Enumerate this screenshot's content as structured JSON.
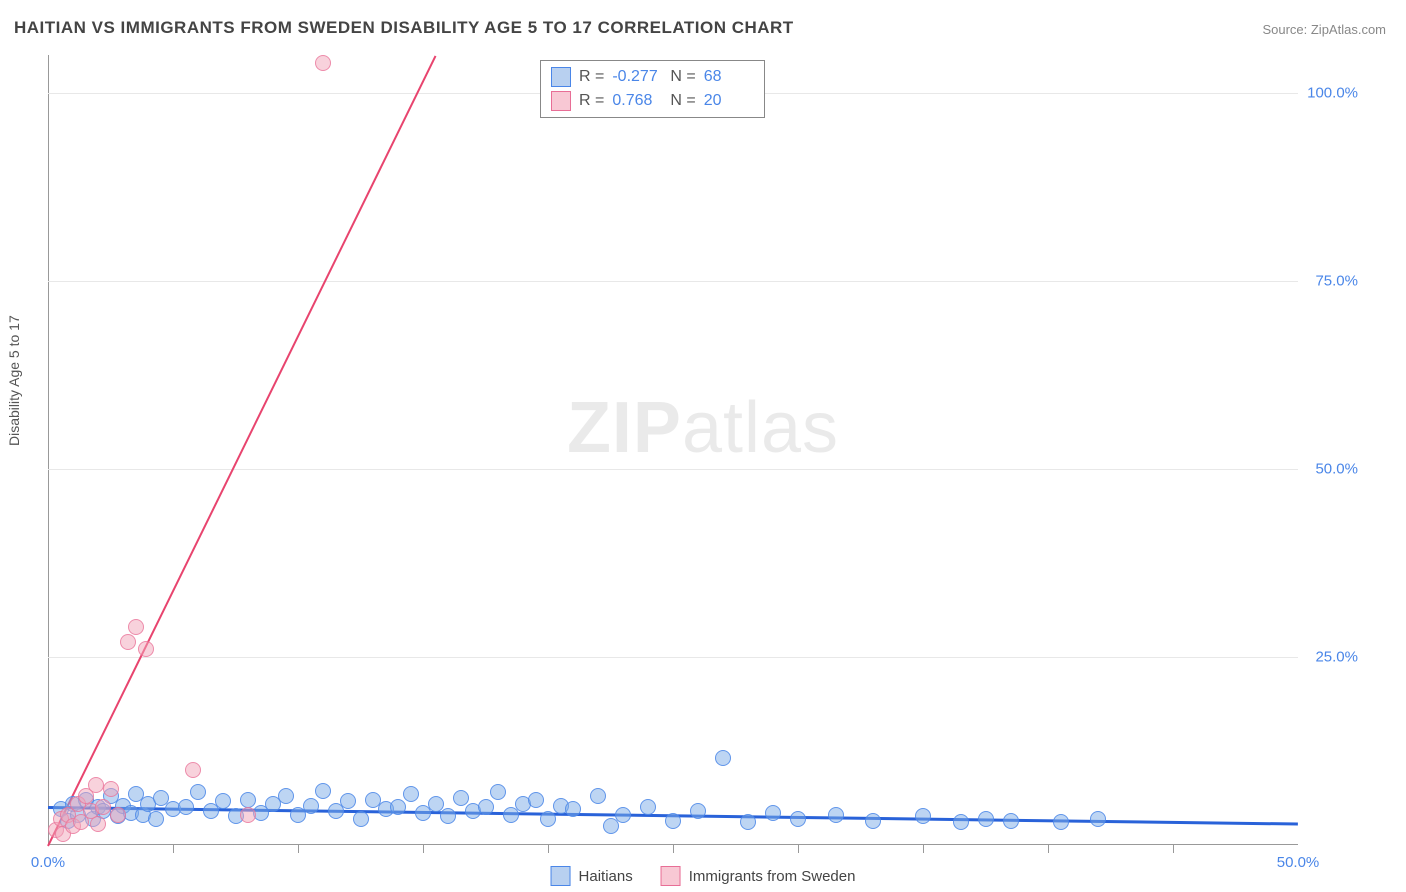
{
  "title": "HAITIAN VS IMMIGRANTS FROM SWEDEN DISABILITY AGE 5 TO 17 CORRELATION CHART",
  "source": "Source: ZipAtlas.com",
  "ylabel": "Disability Age 5 to 17",
  "watermark_zip": "ZIP",
  "watermark_atlas": "atlas",
  "chart": {
    "type": "scatter",
    "background_color": "#ffffff",
    "grid_color": "#e8e8e8",
    "axis_color": "#999999",
    "tick_label_color": "#4a86e8",
    "xlim": [
      0,
      50
    ],
    "ylim": [
      0,
      105
    ],
    "xtick_labels": [
      {
        "v": 0,
        "t": "0.0%"
      },
      {
        "v": 50,
        "t": "50.0%"
      }
    ],
    "xtick_marks": [
      5,
      10,
      15,
      20,
      25,
      30,
      35,
      40,
      45
    ],
    "ytick_labels": [
      {
        "v": 25,
        "t": "25.0%"
      },
      {
        "v": 50,
        "t": "50.0%"
      },
      {
        "v": 75,
        "t": "75.0%"
      },
      {
        "v": 100,
        "t": "100.0%"
      }
    ],
    "marker_radius": 8,
    "series": [
      {
        "name": "Haitians",
        "color_fill": "rgba(123,171,232,0.5)",
        "color_stroke": "rgba(74,134,232,0.8)",
        "swatch_fill": "#b8d0f0",
        "swatch_stroke": "#4a86e8",
        "R": "-0.277",
        "N": "68",
        "trend": {
          "x1": 0,
          "y1": 5.2,
          "x2": 50,
          "y2": 3.0,
          "color": "#2962d9",
          "width": 3
        },
        "points": [
          [
            0.5,
            4.8
          ],
          [
            0.8,
            3.2
          ],
          [
            1.0,
            5.5
          ],
          [
            1.2,
            4.0
          ],
          [
            1.5,
            6.0
          ],
          [
            1.8,
            3.5
          ],
          [
            2.0,
            5.0
          ],
          [
            2.2,
            4.5
          ],
          [
            2.5,
            6.5
          ],
          [
            2.8,
            3.8
          ],
          [
            3.0,
            5.2
          ],
          [
            3.3,
            4.2
          ],
          [
            3.5,
            6.8
          ],
          [
            3.8,
            4.0
          ],
          [
            4.0,
            5.5
          ],
          [
            4.3,
            3.5
          ],
          [
            4.5,
            6.2
          ],
          [
            5.0,
            4.8
          ],
          [
            5.5,
            5.0
          ],
          [
            6.0,
            7.0
          ],
          [
            6.5,
            4.5
          ],
          [
            7.0,
            5.8
          ],
          [
            7.5,
            3.8
          ],
          [
            8.0,
            6.0
          ],
          [
            8.5,
            4.2
          ],
          [
            9.0,
            5.5
          ],
          [
            9.5,
            6.5
          ],
          [
            10.0,
            4.0
          ],
          [
            10.5,
            5.2
          ],
          [
            11.0,
            7.2
          ],
          [
            11.5,
            4.5
          ],
          [
            12.0,
            5.8
          ],
          [
            12.5,
            3.5
          ],
          [
            13.0,
            6.0
          ],
          [
            13.5,
            4.8
          ],
          [
            14.0,
            5.0
          ],
          [
            14.5,
            6.8
          ],
          [
            15.0,
            4.2
          ],
          [
            15.5,
            5.5
          ],
          [
            16.0,
            3.8
          ],
          [
            16.5,
            6.2
          ],
          [
            17.0,
            4.5
          ],
          [
            17.5,
            5.0
          ],
          [
            18.0,
            7.0
          ],
          [
            18.5,
            4.0
          ],
          [
            19.0,
            5.5
          ],
          [
            19.5,
            6.0
          ],
          [
            20.0,
            3.5
          ],
          [
            20.5,
            5.2
          ],
          [
            21.0,
            4.8
          ],
          [
            22.0,
            6.5
          ],
          [
            22.5,
            2.5
          ],
          [
            23.0,
            4.0
          ],
          [
            24.0,
            5.0
          ],
          [
            25.0,
            3.2
          ],
          [
            26.0,
            4.5
          ],
          [
            27.0,
            11.5
          ],
          [
            28.0,
            3.0
          ],
          [
            29.0,
            4.2
          ],
          [
            30.0,
            3.5
          ],
          [
            31.5,
            4.0
          ],
          [
            33.0,
            3.2
          ],
          [
            35.0,
            3.8
          ],
          [
            36.5,
            3.0
          ],
          [
            37.5,
            3.5
          ],
          [
            38.5,
            3.2
          ],
          [
            40.5,
            3.0
          ],
          [
            42.0,
            3.5
          ]
        ]
      },
      {
        "name": "Immigrants from Sweden",
        "color_fill": "rgba(242,166,186,0.5)",
        "color_stroke": "rgba(232,110,150,0.7)",
        "swatch_fill": "#f8c8d4",
        "swatch_stroke": "#e86e96",
        "R": "0.768",
        "N": "20",
        "trend": {
          "x1": 0,
          "y1": 0,
          "x2": 15.5,
          "y2": 105,
          "color": "#e8446e",
          "width": 2
        },
        "points": [
          [
            0.3,
            2.0
          ],
          [
            0.5,
            3.5
          ],
          [
            0.6,
            1.5
          ],
          [
            0.8,
            4.0
          ],
          [
            1.0,
            2.5
          ],
          [
            1.2,
            5.5
          ],
          [
            1.3,
            3.0
          ],
          [
            1.5,
            6.5
          ],
          [
            1.7,
            4.5
          ],
          [
            1.9,
            8.0
          ],
          [
            2.0,
            2.8
          ],
          [
            2.2,
            5.0
          ],
          [
            2.5,
            7.5
          ],
          [
            2.8,
            4.0
          ],
          [
            3.2,
            27.0
          ],
          [
            3.5,
            29.0
          ],
          [
            3.9,
            26.0
          ],
          [
            5.8,
            10.0
          ],
          [
            8.0,
            4.0
          ],
          [
            11.0,
            104.0
          ]
        ]
      }
    ]
  },
  "legend_top": {
    "R_label": "R =",
    "N_label": "N ="
  },
  "legend_bottom": [
    {
      "label": "Haitians",
      "fill": "#b8d0f0",
      "stroke": "#4a86e8"
    },
    {
      "label": "Immigrants from Sweden",
      "fill": "#f8c8d4",
      "stroke": "#e86e96"
    }
  ]
}
